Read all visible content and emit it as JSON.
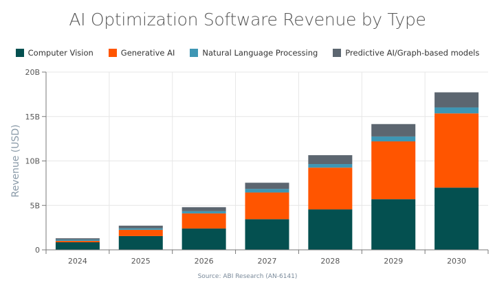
{
  "chart_data": {
    "type": "bar",
    "stacked": true,
    "title": "AI Optimization Software Revenue by Type",
    "xlabel": "",
    "ylabel": "Revenue (USD)",
    "ylim": [
      0,
      20
    ],
    "yticks": [
      "0",
      "5B",
      "10B",
      "15B",
      "20B"
    ],
    "ytick_values": [
      0,
      5,
      10,
      15,
      20
    ],
    "grid": true,
    "legend_position": "top",
    "categories": [
      "2024",
      "2025",
      "2026",
      "2027",
      "2028",
      "2029",
      "2030"
    ],
    "series": [
      {
        "name": "Computer Vision",
        "color": "#045050",
        "values": [
          0.85,
          1.55,
          2.4,
          3.45,
          4.55,
          5.7,
          7.0
        ]
      },
      {
        "name": "Generative AI",
        "color": "#ff5500",
        "values": [
          0.15,
          0.7,
          1.7,
          3.0,
          4.7,
          6.5,
          8.35
        ]
      },
      {
        "name": "Natural Language Processing",
        "color": "#3e96b4",
        "values": [
          0.15,
          0.17,
          0.25,
          0.4,
          0.4,
          0.55,
          0.67
        ]
      },
      {
        "name": "Predictive AI/Graph-based models",
        "color": "#5c6670",
        "values": [
          0.15,
          0.3,
          0.45,
          0.7,
          1.0,
          1.4,
          1.7
        ]
      }
    ],
    "source": "Source: ABI Research (AN-6141)"
  }
}
